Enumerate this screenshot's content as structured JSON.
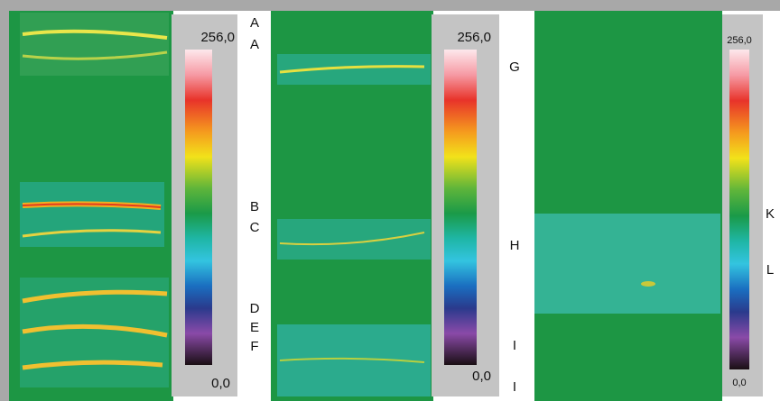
{
  "panels": [
    {
      "colorbar": {
        "max": "256,0",
        "min": "0,0"
      },
      "letters": [
        "A",
        "A",
        "B",
        "C",
        "D",
        "E",
        "F"
      ]
    },
    {
      "colorbar": {
        "max": "256,0",
        "min": "0,0"
      },
      "letters": [
        "G",
        "H",
        "I",
        "I"
      ]
    },
    {
      "colorbar": {
        "max": "256,0",
        "min": "0,0"
      },
      "letters": [
        "K",
        "L"
      ]
    }
  ]
}
